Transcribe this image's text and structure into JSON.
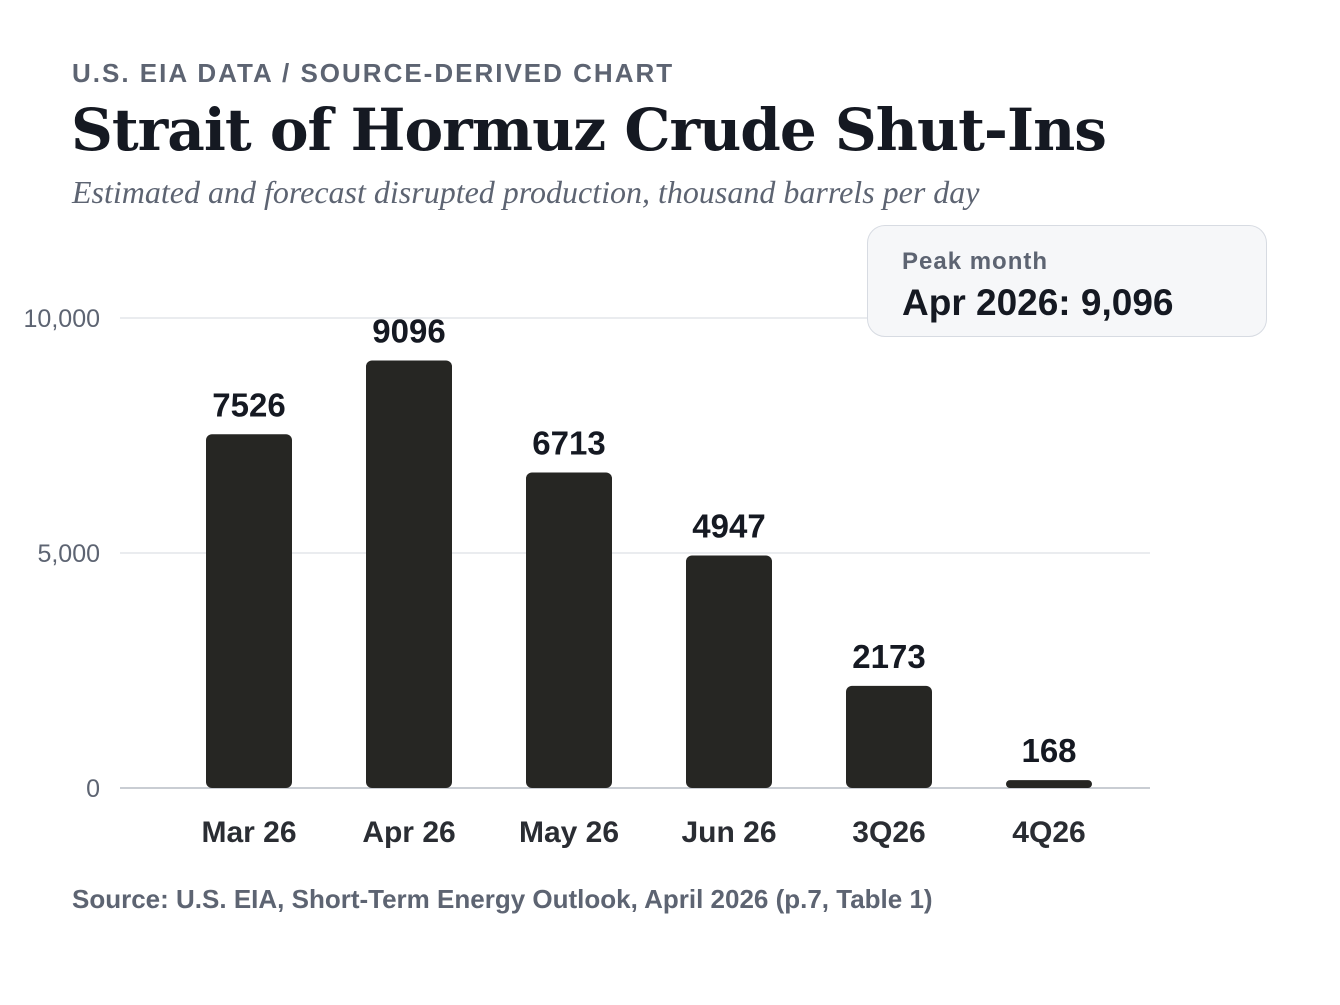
{
  "header": {
    "kicker": "U.S. EIA DATA / SOURCE-DERIVED CHART",
    "title": "Strait of Hormuz Crude Shut-Ins",
    "subtitle": "Estimated and forecast disrupted production, thousand barrels per day"
  },
  "callout": {
    "label": "Peak month",
    "value": "Apr 2026: 9,096"
  },
  "footer": {
    "source": "Source: U.S. EIA, Short-Term Energy Outlook, April 2026 (p.7, Table 1)"
  },
  "chart_data": {
    "type": "bar",
    "title": "Strait of Hormuz Crude Shut-Ins",
    "subtitle": "Estimated and forecast disrupted production, thousand barrels per day",
    "xlabel": "",
    "ylabel": "",
    "categories": [
      "Mar 26",
      "Apr 26",
      "May 26",
      "Jun 26",
      "3Q26",
      "4Q26"
    ],
    "values": [
      7526,
      9096,
      6713,
      4947,
      2173,
      168
    ],
    "data_labels": [
      "7526",
      "9096",
      "6713",
      "4947",
      "2173",
      "168"
    ],
    "yticks": [
      0,
      5000,
      10000
    ],
    "ytick_labels": [
      "0",
      "5,000",
      "10,000"
    ],
    "ylim": [
      0,
      10000
    ],
    "grid": true,
    "legend": "none",
    "bar_color": "#262623",
    "grid_color": "#e4e6ea",
    "axis_color": "#c9cdd3"
  }
}
